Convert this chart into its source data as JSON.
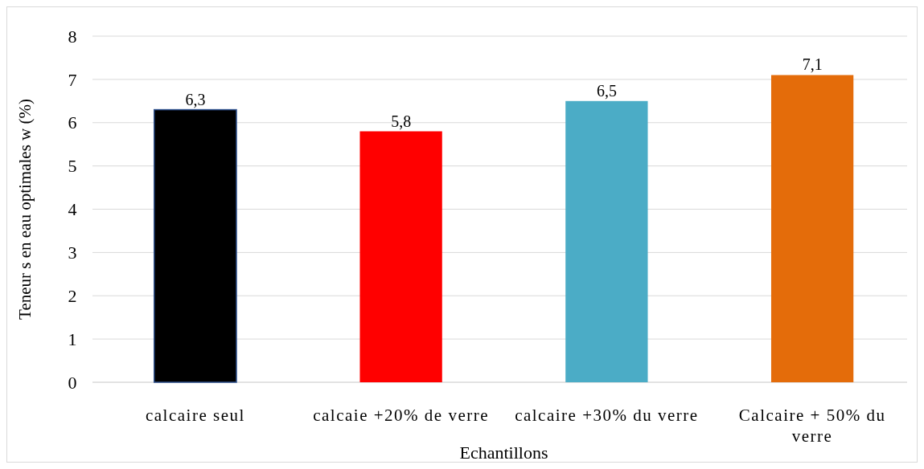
{
  "chart_data": {
    "type": "bar",
    "xlabel": "Echantillons",
    "ylabel": "Teneur s en eau optimales w (%)",
    "categories": [
      "calcaire seul",
      "calcaie +20% de verre",
      "calcaire +30% du verre",
      "Calcaire + 50% du verre"
    ],
    "values": [
      6.3,
      5.8,
      6.5,
      7.1
    ],
    "colors": [
      "#000000",
      "#ff0000",
      "#4bacc6",
      "#e46c0a"
    ],
    "value_labels": [
      "6,3",
      "5,8",
      "6,5",
      "7,1"
    ],
    "ylim": [
      0,
      8
    ],
    "yticks": [
      0,
      1,
      2,
      3,
      4,
      5,
      6,
      7,
      8
    ],
    "grid": "y"
  }
}
